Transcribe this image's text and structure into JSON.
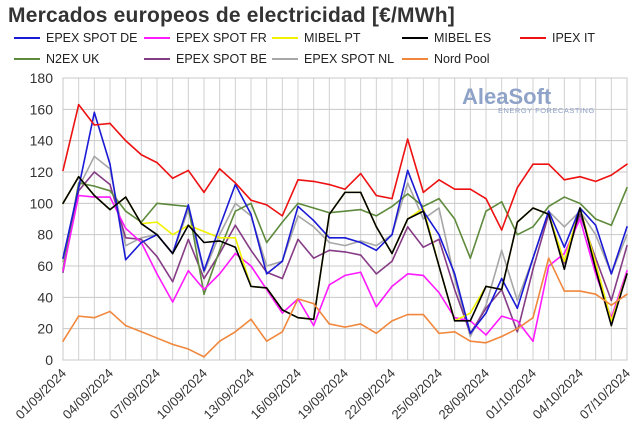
{
  "chart_data": {
    "type": "line",
    "title": "Mercados europeos de electricidad [€/MWh]",
    "xlabel": "",
    "ylabel": "",
    "ylim": [
      0,
      180
    ],
    "yticks": [
      0,
      20,
      40,
      60,
      80,
      100,
      120,
      140,
      160,
      180
    ],
    "x_start": "01/09/2024",
    "x": [
      "01/09/2024",
      "02/09/2024",
      "03/09/2024",
      "04/09/2024",
      "05/09/2024",
      "06/09/2024",
      "07/09/2024",
      "08/09/2024",
      "09/09/2024",
      "10/09/2024",
      "11/09/2024",
      "12/09/2024",
      "13/09/2024",
      "14/09/2024",
      "15/09/2024",
      "16/09/2024",
      "17/09/2024",
      "18/09/2024",
      "19/09/2024",
      "20/09/2024",
      "21/09/2024",
      "22/09/2024",
      "23/09/2024",
      "24/09/2024",
      "25/09/2024",
      "26/09/2024",
      "27/09/2024",
      "28/09/2024",
      "29/09/2024",
      "30/09/2024",
      "01/10/2024",
      "02/10/2024",
      "03/10/2024",
      "04/10/2024",
      "05/10/2024",
      "06/10/2024",
      "07/10/2024"
    ],
    "xtick_labels": [
      "01/09/2024",
      "04/09/2024",
      "07/09/2024",
      "10/09/2024",
      "13/09/2024",
      "16/09/2024",
      "19/09/2024",
      "22/09/2024",
      "25/09/2024",
      "28/09/2024",
      "01/10/2024",
      "04/10/2024",
      "07/10/2024"
    ],
    "grid": true,
    "legend_position": "top",
    "series": [
      {
        "name": "EPEX SPOT DE",
        "color": "#1a1ad6",
        "values": [
          65,
          110,
          158,
          125,
          64,
          75,
          80,
          68,
          99,
          57,
          85,
          112,
          93,
          55,
          63,
          98,
          89,
          78,
          78,
          75,
          70,
          80,
          121,
          95,
          80,
          55,
          17,
          30,
          52,
          33,
          65,
          95,
          72,
          97,
          86,
          55,
          85
        ]
      },
      {
        "name": "EPEX SPOT FR",
        "color": "#ff1aff",
        "values": [
          57,
          105,
          104,
          104,
          84,
          75,
          55,
          37,
          57,
          45,
          55,
          68,
          60,
          45,
          30,
          39,
          22,
          48,
          54,
          56,
          34,
          47,
          55,
          54,
          43,
          27,
          25,
          16,
          28,
          25,
          12,
          60,
          68,
          90,
          55,
          27,
          57
        ]
      },
      {
        "name": "MIBEL PT",
        "color": "#f2f200",
        "values": [
          100,
          117,
          105,
          96,
          104,
          87,
          88,
          80,
          86,
          82,
          78,
          78,
          47,
          46,
          32,
          27,
          26,
          93,
          107,
          107,
          85,
          68,
          90,
          97,
          60,
          25,
          30,
          47,
          45,
          88,
          97,
          93,
          63,
          97,
          62,
          25,
          55
        ]
      },
      {
        "name": "MIBEL ES",
        "color": "#000000",
        "values": [
          100,
          117,
          105,
          96,
          104,
          87,
          80,
          68,
          86,
          75,
          76,
          72,
          47,
          46,
          32,
          27,
          26,
          93,
          107,
          107,
          85,
          68,
          90,
          95,
          60,
          25,
          25,
          47,
          45,
          88,
          97,
          93,
          58,
          97,
          58,
          22,
          55
        ]
      },
      {
        "name": "IPEX IT",
        "color": "#ee1111",
        "values": [
          121,
          163,
          150,
          151,
          140,
          131,
          126,
          116,
          121,
          107,
          122,
          113,
          102,
          99,
          92,
          115,
          114,
          112,
          109,
          119,
          105,
          103,
          141,
          107,
          115,
          109,
          109,
          103,
          83,
          110,
          125,
          125,
          115,
          117,
          114,
          118,
          125
        ]
      },
      {
        "name": "N2EX UK",
        "color": "#5e8a3c",
        "values": [
          58,
          113,
          111,
          108,
          95,
          88,
          100,
          99,
          98,
          42,
          70,
          95,
          100,
          75,
          88,
          100,
          97,
          94,
          95,
          96,
          92,
          98,
          106,
          98,
          103,
          90,
          65,
          95,
          101,
          80,
          85,
          98,
          104,
          100,
          90,
          86,
          110
        ]
      },
      {
        "name": "EPEX SPOT BE",
        "color": "#853c85",
        "values": [
          56,
          108,
          120,
          112,
          78,
          77,
          66,
          50,
          77,
          52,
          68,
          86,
          70,
          56,
          52,
          77,
          65,
          70,
          69,
          67,
          55,
          63,
          85,
          72,
          77,
          45,
          17,
          33,
          45,
          18,
          58,
          93,
          62,
          93,
          65,
          38,
          73
        ]
      },
      {
        "name": "EPEX SPOT NL",
        "color": "#a6a6a6",
        "values": [
          63,
          110,
          130,
          122,
          73,
          78,
          80,
          68,
          96,
          56,
          80,
          100,
          92,
          60,
          63,
          92,
          85,
          75,
          73,
          76,
          73,
          80,
          113,
          90,
          97,
          52,
          15,
          35,
          70,
          38,
          65,
          95,
          85,
          95,
          80,
          55,
          80
        ]
      },
      {
        "name": "Nord Pool",
        "color": "#f0873c",
        "values": [
          12,
          28,
          27,
          31,
          22,
          18,
          14,
          10,
          7,
          2,
          12,
          18,
          26,
          12,
          18,
          39,
          36,
          23,
          21,
          23,
          17,
          25,
          29,
          29,
          17,
          18,
          12,
          11,
          15,
          20,
          27,
          65,
          44,
          44,
          42,
          35,
          42
        ]
      }
    ]
  },
  "logo": {
    "name": "AleaSoft",
    "tagline": "ENERGY FORECASTING"
  }
}
